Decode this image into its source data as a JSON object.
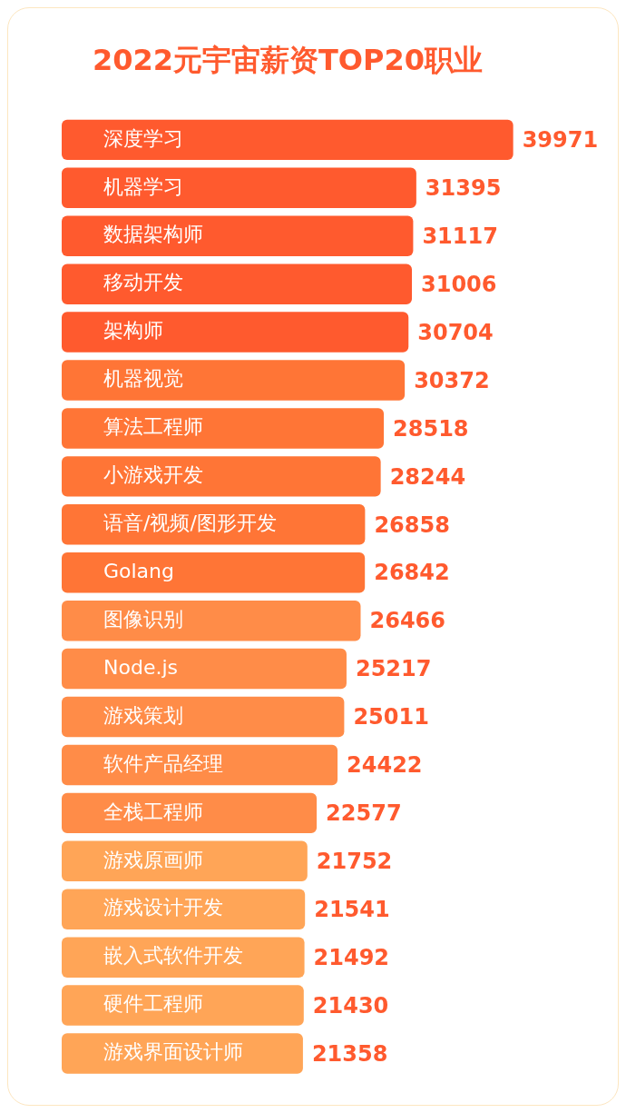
{
  "chart_data": {
    "type": "bar",
    "orientation": "horizontal",
    "title": "2022元宇宙薪资TOP20职业",
    "categories": [
      "深度学习",
      "机器学习",
      "数据架构师",
      "移动开发",
      "架构师",
      "机器视觉",
      "算法工程师",
      "小游戏开发",
      "语音/视频/图形开发",
      "Golang",
      "图像识别",
      "Node.js",
      "游戏策划",
      "软件产品经理",
      "全栈工程师",
      "游戏原画师",
      "游戏设计开发",
      "嵌入式软件开发",
      "硬件工程师",
      "游戏界面设计师"
    ],
    "values": [
      39971,
      31395,
      31117,
      31006,
      30704,
      30372,
      28518,
      28244,
      26858,
      26842,
      26466,
      25217,
      25011,
      24422,
      22577,
      21752,
      21541,
      21492,
      21430,
      21358
    ],
    "colors": [
      "#ff5a2e",
      "#ff5a2e",
      "#ff5a2e",
      "#ff5a2e",
      "#ff5a2e",
      "#ff7536",
      "#ff7536",
      "#ff7536",
      "#ff7536",
      "#ff7536",
      "#ff8c48",
      "#ff8c48",
      "#ff8c48",
      "#ff8c48",
      "#ff8c48",
      "#ffa557",
      "#ffa557",
      "#ffa557",
      "#ffa557",
      "#ffa557"
    ],
    "data_labels": true,
    "legend": false
  }
}
